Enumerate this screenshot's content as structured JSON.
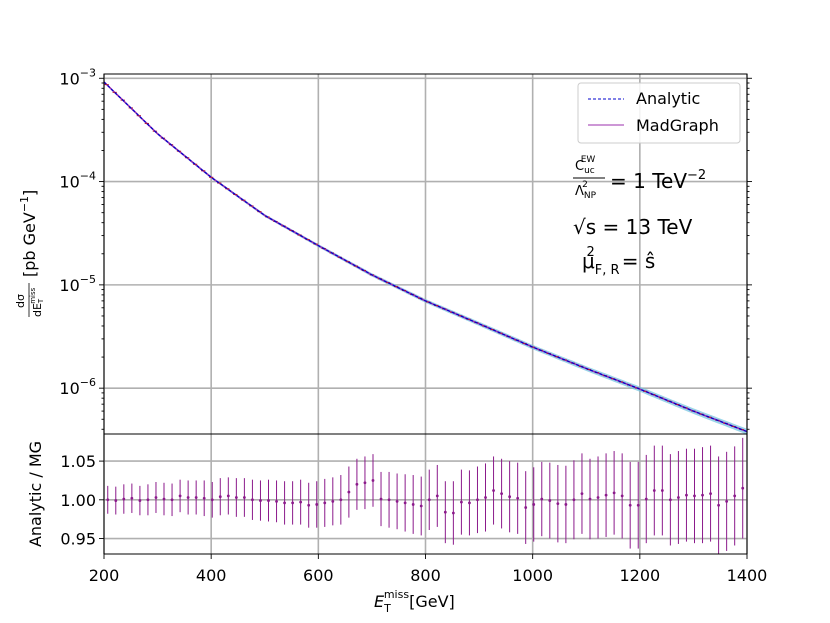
{
  "chart_data": [
    {
      "type": "line",
      "panel": "main",
      "yscale": "log",
      "xlim": [
        200,
        1400
      ],
      "ylim": [
        3.6e-07,
        0.0011
      ],
      "xticks": [
        200,
        400,
        600,
        800,
        1000,
        1200,
        1400
      ],
      "xtick_labels": [
        "200",
        "400",
        "600",
        "800",
        "1000",
        "1200",
        "1400"
      ],
      "yticks": [
        1e-06,
        1e-05,
        0.0001,
        0.001
      ],
      "ytick_labels": [
        {
          "base": "10",
          "exp": "−6"
        },
        {
          "base": "10",
          "exp": "−5"
        },
        {
          "base": "10",
          "exp": "−4"
        },
        {
          "base": "10",
          "exp": "−3"
        }
      ],
      "ylabel": {
        "frac_num": "dσ",
        "frac_den_main": "dE",
        "frac_den_sub": "T",
        "frac_den_sup": "miss",
        "unit": "[pb GeV",
        "unit_exp": "−1",
        "unit_close": "]"
      },
      "grid": true,
      "legend_position": "top-right",
      "x": [
        200,
        300,
        400,
        500,
        600,
        700,
        800,
        900,
        1000,
        1100,
        1200,
        1300,
        1400
      ],
      "series": [
        {
          "name": "Analytic",
          "color": "#0000cc",
          "style": "dashed",
          "values": [
            0.00092,
            0.00029,
            0.00011,
            4.7e-05,
            2.4e-05,
            1.25e-05,
            7e-06,
            4.2e-06,
            2.5e-06,
            1.55e-06,
            9.8e-07,
            6e-07,
            3.8e-07
          ]
        },
        {
          "name": "MadGraph",
          "color": "#9b2fae",
          "style": "solid",
          "values": [
            0.00092,
            0.00029,
            0.00011,
            4.7e-05,
            2.4e-05,
            1.25e-05,
            7e-06,
            4.2e-06,
            2.5e-06,
            1.55e-06,
            9.8e-07,
            6e-07,
            3.8e-07
          ]
        }
      ],
      "band_color": "#6fc3e0",
      "annotations": [
        {
          "num_main": "C",
          "num_sub": "uc",
          "num_sup": "EW",
          "den_main": "Λ",
          "den_sub": "NP",
          "den_sup": "2",
          "rhs": "= 1 TeV",
          "rhs_exp": "−2"
        },
        {
          "text": "√s = 13 TeV"
        },
        {
          "main": "μ",
          "sub": "F, R",
          "sup": "2",
          "rhs": "= ŝ"
        }
      ]
    },
    {
      "type": "scatter",
      "panel": "ratio",
      "xlim": [
        200,
        1400
      ],
      "ylim": [
        0.93,
        1.085
      ],
      "yticks": [
        0.95,
        1.0,
        1.05
      ],
      "ytick_labels": [
        "0.95",
        "1.00",
        "1.05"
      ],
      "ylabel": "Analytic / MG",
      "xlabel": {
        "main": "E",
        "sub": "T",
        "sup": "miss",
        "unit": "[GeV]"
      },
      "grid": true,
      "color": "#8b1a8b",
      "x": [
        200,
        215,
        230,
        245,
        260,
        275,
        290,
        305,
        320,
        335,
        350,
        365,
        380,
        395,
        410,
        425,
        440,
        455,
        470,
        485,
        500,
        515,
        530,
        545,
        560,
        575,
        590,
        605,
        620,
        635,
        650,
        665,
        680,
        695,
        710,
        725,
        740,
        755,
        770,
        785,
        800,
        815,
        830,
        845,
        860,
        875,
        890,
        905,
        920,
        935,
        950,
        965,
        980,
        995,
        1010,
        1025,
        1040,
        1055,
        1070,
        1085,
        1100,
        1115,
        1130,
        1145,
        1160,
        1175,
        1190,
        1205,
        1220,
        1235,
        1250,
        1265,
        1280,
        1295,
        1310,
        1325,
        1340,
        1355,
        1370,
        1385
      ],
      "y": [
        1.0,
        0.999,
        1.001,
        1.002,
        0.999,
        1.0,
        1.003,
        1.001,
        1.0,
        1.005,
        1.003,
        1.003,
        1.002,
        1.0,
        1.004,
        1.005,
        1.003,
        1.003,
        1.0,
        0.999,
        0.999,
        0.998,
        0.996,
        0.996,
        0.997,
        0.993,
        0.994,
        0.996,
        0.998,
        1.0,
        1.01,
        1.02,
        1.022,
        1.025,
        1.001,
        1.0,
        0.998,
        0.996,
        0.994,
        0.992,
        1.0,
        1.005,
        0.984,
        0.983,
        0.997,
        0.996,
        1.0,
        1.003,
        1.012,
        1.008,
        1.004,
        1.002,
        0.99,
        0.994,
        1.001,
        0.999,
        0.995,
        0.994,
        1.0,
        1.008,
        1.001,
        1.003,
        1.006,
        1.009,
        1.005,
        0.993,
        0.993,
        1.001,
        1.012,
        1.012,
        1.0,
        1.003,
        1.006,
        1.005,
        1.006,
        1.008,
        0.993,
        0.998,
        1.005,
        1.015
      ],
      "yerr": [
        0.018,
        0.018,
        0.019,
        0.019,
        0.019,
        0.02,
        0.02,
        0.021,
        0.021,
        0.021,
        0.022,
        0.022,
        0.023,
        0.023,
        0.024,
        0.024,
        0.025,
        0.025,
        0.026,
        0.026,
        0.027,
        0.027,
        0.028,
        0.028,
        0.029,
        0.029,
        0.03,
        0.031,
        0.031,
        0.032,
        0.033,
        0.033,
        0.034,
        0.034,
        0.035,
        0.036,
        0.036,
        0.037,
        0.038,
        0.038,
        0.039,
        0.04,
        0.04,
        0.041,
        0.042,
        0.042,
        0.043,
        0.044,
        0.044,
        0.045,
        0.046,
        0.046,
        0.047,
        0.048,
        0.048,
        0.049,
        0.05,
        0.05,
        0.051,
        0.052,
        0.052,
        0.053,
        0.054,
        0.054,
        0.055,
        0.056,
        0.056,
        0.057,
        0.058,
        0.058,
        0.059,
        0.06,
        0.06,
        0.061,
        0.062,
        0.062,
        0.063,
        0.064,
        0.064,
        0.065
      ]
    }
  ]
}
